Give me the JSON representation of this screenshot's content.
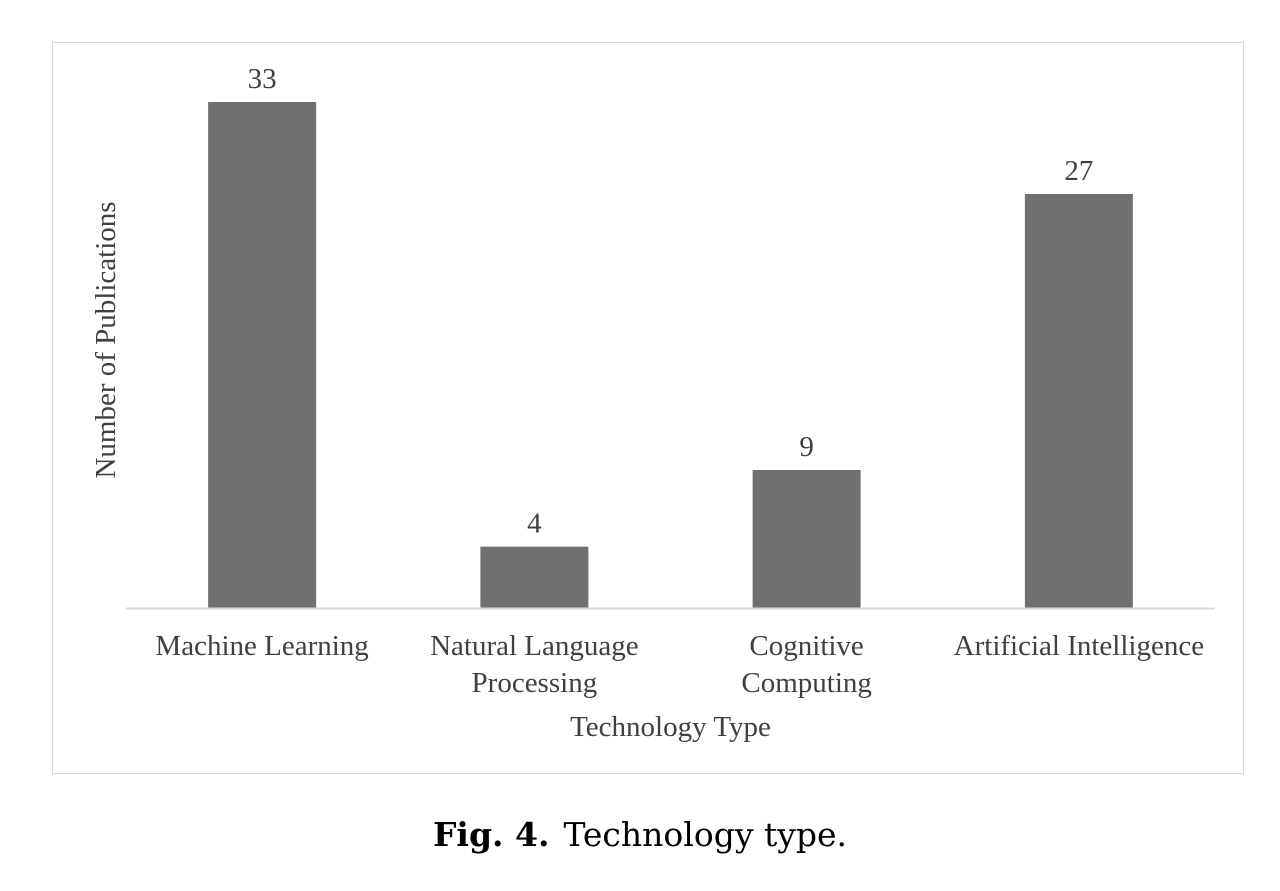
{
  "chart_data": {
    "type": "bar",
    "categories": [
      [
        "Machine Learning"
      ],
      [
        "Natural Language",
        "Processing"
      ],
      [
        "Cognitive",
        "Computing"
      ],
      [
        "Artificial Intelligence"
      ]
    ],
    "values": [
      33,
      4,
      9,
      27
    ],
    "data_labels": [
      "33",
      "4",
      "9",
      "27"
    ],
    "xlabel": "Technology Type",
    "ylabel": "Number of Publications",
    "ylim": [
      0,
      33
    ],
    "grid": false,
    "legend": "none",
    "colors": {
      "bar": "#707070",
      "axis": "#d9d9d9",
      "text": "#404040"
    }
  },
  "caption": {
    "label": "Fig. 4.",
    "text": "Technology type."
  }
}
